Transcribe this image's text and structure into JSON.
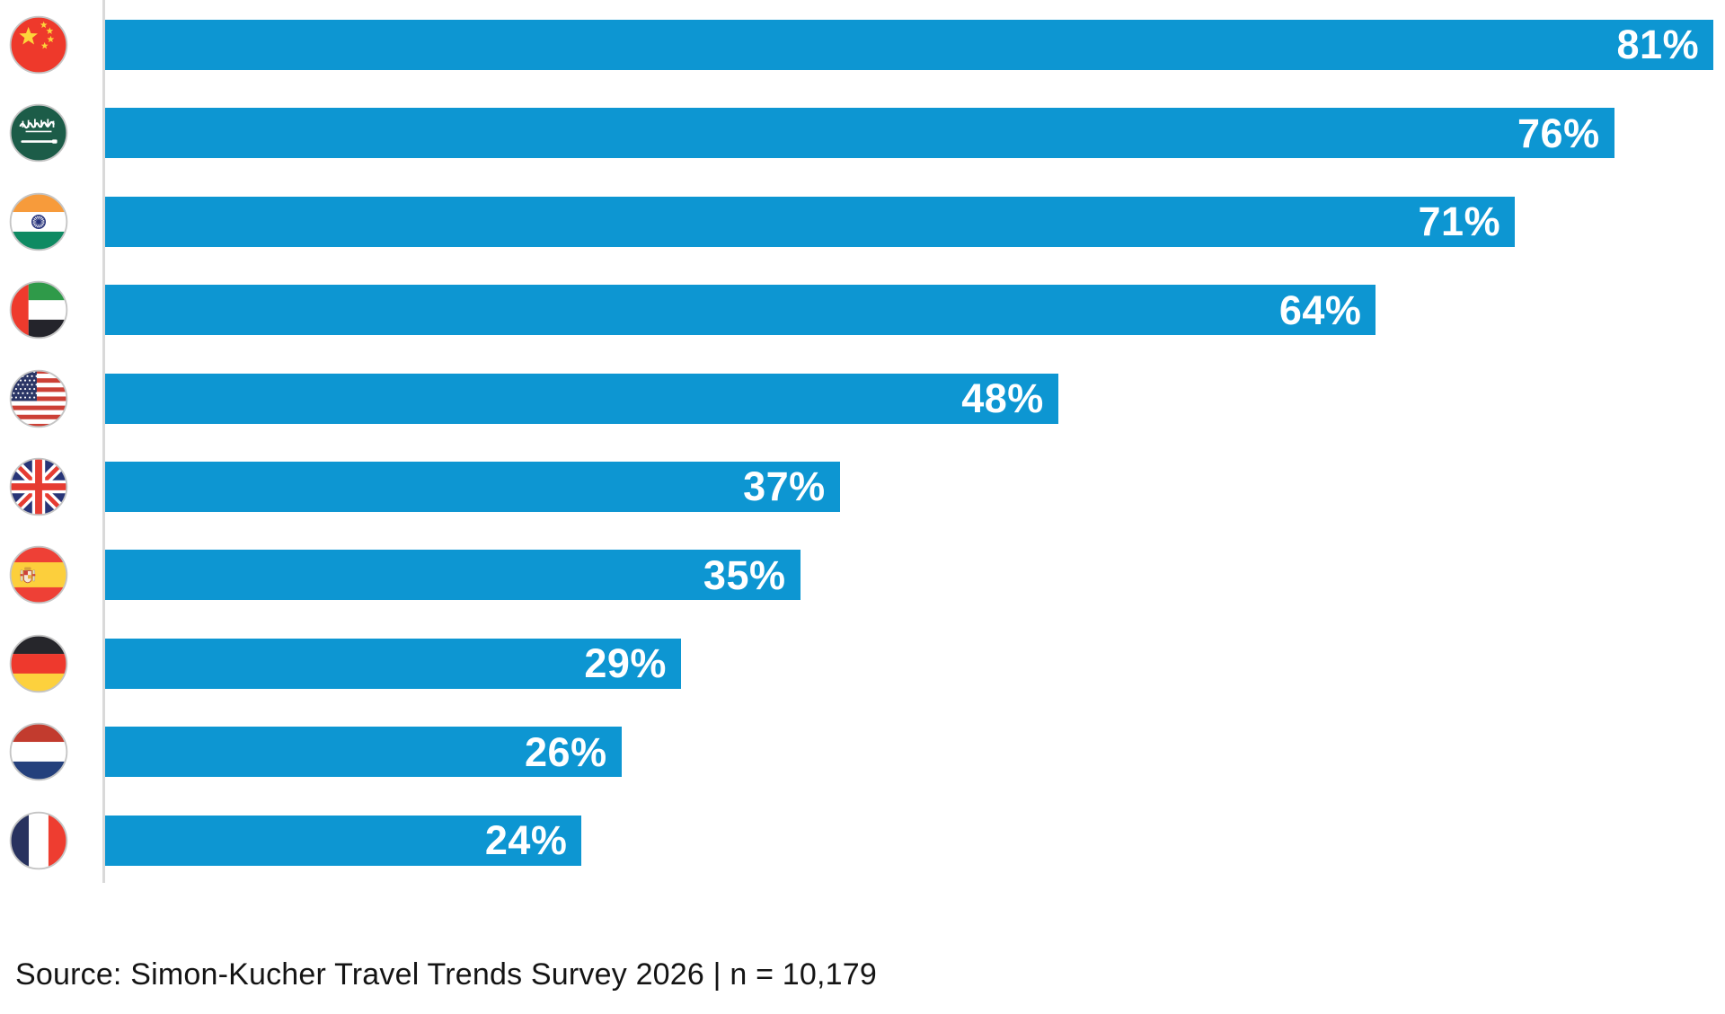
{
  "chart_data": {
    "type": "bar",
    "orientation": "horizontal",
    "title": "",
    "categories": [
      "China",
      "Saudi Arabia",
      "India",
      "United Arab Emirates",
      "United States",
      "United Kingdom",
      "Spain",
      "Germany",
      "Netherlands",
      "France"
    ],
    "flag_icons": [
      "china",
      "saudi-arabia",
      "india",
      "uae",
      "usa",
      "uk",
      "spain",
      "germany",
      "netherlands",
      "france"
    ],
    "values": [
      81,
      76,
      71,
      64,
      48,
      37,
      35,
      29,
      26,
      24
    ],
    "value_labels": [
      "81%",
      "76%",
      "71%",
      "64%",
      "48%",
      "37%",
      "35%",
      "29%",
      "26%",
      "24%"
    ],
    "xlim": [
      0,
      85
    ],
    "grid": false,
    "legend": "none",
    "bar_color": "#0d96d2",
    "value_label_color": "#ffffff",
    "axis_line_color": "#d9d9d9"
  },
  "footer": {
    "source_text": "Source: Simon-Kucher Travel Trends Survey 2026 | n = 10,179"
  }
}
